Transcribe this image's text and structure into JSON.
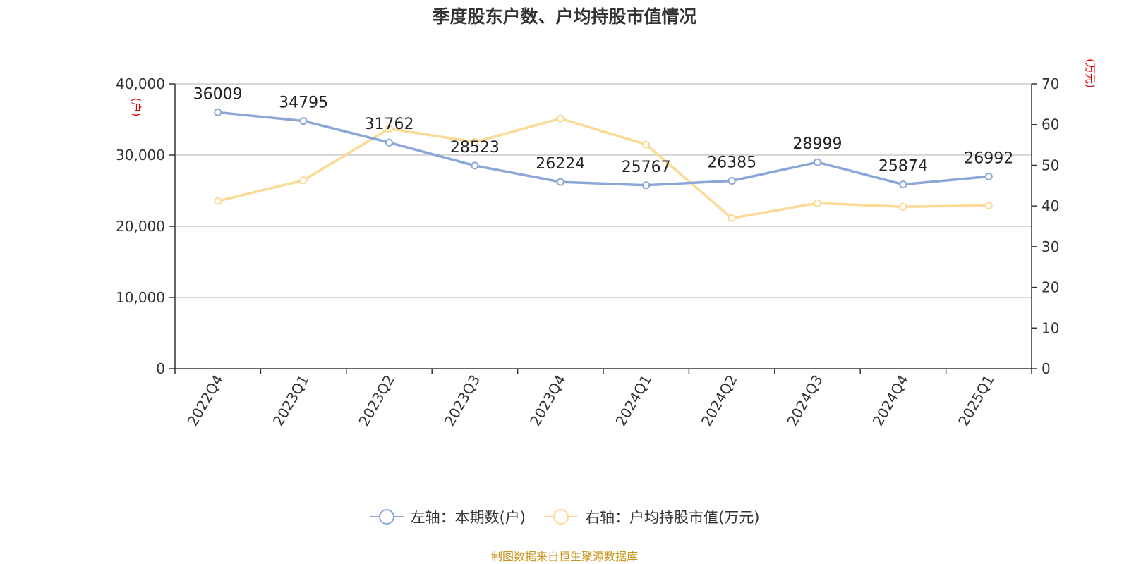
{
  "title": "季度股东户数、户均持股市值情况",
  "source": "制图数据来自恒生聚源数据库",
  "chart_data": {
    "type": "line",
    "categories": [
      "2022Q4",
      "2023Q1",
      "2023Q2",
      "2023Q3",
      "2023Q4",
      "2024Q1",
      "2024Q2",
      "2024Q3",
      "2024Q4",
      "2025Q1"
    ],
    "series": [
      {
        "name": "左轴：本期数(户)",
        "axis": "left",
        "color": "#8ba7d8",
        "values": [
          36009,
          34795,
          31762,
          28523,
          26224,
          25767,
          26385,
          28999,
          25874,
          26992
        ],
        "labels": [
          "36009",
          "34795",
          "31762",
          "28523",
          "26224",
          "25767",
          "26385",
          "28999",
          "25874",
          "26992"
        ]
      },
      {
        "name": "右轴：户均持股市值(万元)",
        "axis": "right",
        "color": "#fcd995",
        "values": [
          41.2,
          46.3,
          59.0,
          55.7,
          61.5,
          55.1,
          37.0,
          40.7,
          39.8,
          40.1
        ]
      }
    ],
    "left_axis": {
      "unit": "(户)",
      "min": 0,
      "max": 40000,
      "ticks": [
        "0",
        "10,000",
        "20,000",
        "30,000",
        "40,000"
      ],
      "tick_values": [
        0,
        10000,
        20000,
        30000,
        40000
      ]
    },
    "right_axis": {
      "unit": "(万元)",
      "min": 0,
      "max": 70,
      "ticks": [
        "0",
        "10",
        "20",
        "30",
        "40",
        "50",
        "60",
        "70"
      ],
      "tick_values": [
        0,
        10,
        20,
        30,
        40,
        50,
        60,
        70
      ]
    },
    "grid": true,
    "legend_position": "bottom"
  }
}
